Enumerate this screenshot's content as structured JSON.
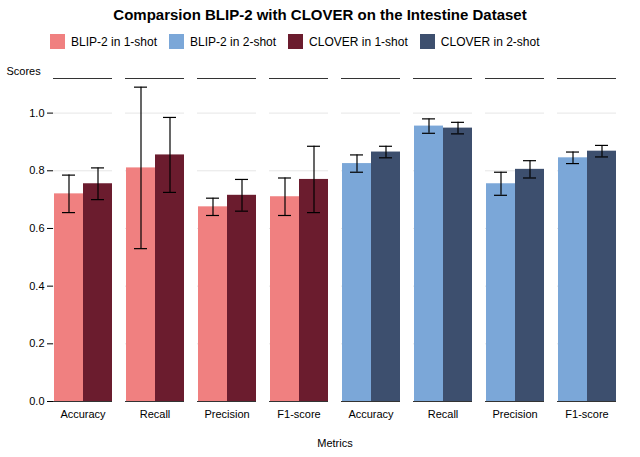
{
  "chart_data": {
    "type": "bar",
    "title": "Comparsion BLIP-2 with CLOVER on the Intestine Dataset",
    "xlabel": "Metrics",
    "ylabel": "Scores",
    "categories": [
      "Accuracy",
      "Recall",
      "Precision",
      "F1-score",
      "Accuracy",
      "Recall",
      "Precision",
      "F1-score"
    ],
    "series": [
      {
        "name": "BLIP-2 in 1-shot",
        "color": "#F08080",
        "values": [
          0.72,
          0.81,
          0.675,
          0.71,
          null,
          null,
          null,
          null
        ],
        "errors": [
          0.065,
          0.28,
          0.03,
          0.065,
          null,
          null,
          null,
          null
        ]
      },
      {
        "name": "BLIP-2 in 2-shot",
        "color": "#7BA7D8",
        "values": [
          null,
          null,
          null,
          null,
          0.825,
          0.955,
          0.755,
          0.845
        ],
        "errors": [
          null,
          null,
          null,
          null,
          0.03,
          0.025,
          0.04,
          0.02
        ]
      },
      {
        "name": "CLOVER in 1-shot",
        "color": "#6B1C2E",
        "values": [
          0.755,
          0.855,
          0.715,
          0.77,
          null,
          null,
          null,
          null
        ],
        "errors": [
          0.055,
          0.13,
          0.055,
          0.115,
          null,
          null,
          null,
          null
        ]
      },
      {
        "name": "CLOVER in 2-shot",
        "color": "#3D4F6E",
        "values": [
          null,
          null,
          null,
          null,
          0.865,
          0.948,
          0.805,
          0.868
        ],
        "errors": [
          null,
          null,
          null,
          null,
          0.02,
          0.02,
          0.03,
          0.02
        ]
      }
    ],
    "ylim": [
      0.0,
      1.12
    ],
    "yticks": [
      {
        "value": 0.0,
        "label": "0.0"
      },
      0.2,
      0.4,
      0.6,
      0.8,
      {
        "value": 1.0,
        "label": "1.0"
      }
    ],
    "grid": true,
    "legend": "upper left"
  }
}
